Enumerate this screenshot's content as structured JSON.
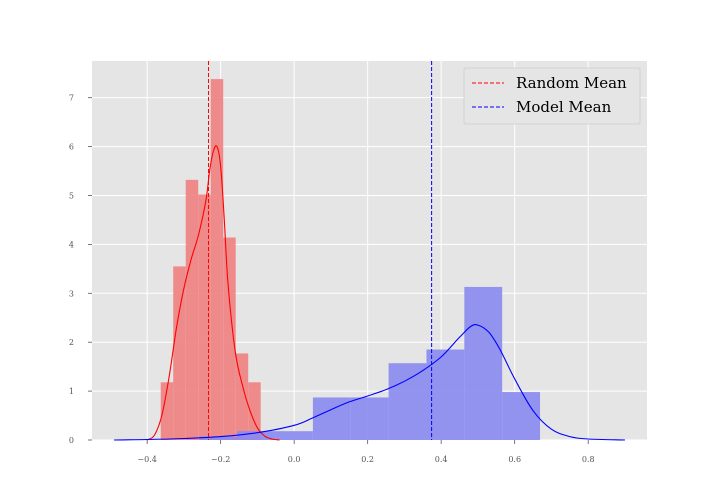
{
  "chart_data": {
    "type": "histogram",
    "title": "",
    "xlabel": "",
    "ylabel": "",
    "xlim": [
      -0.55,
      0.96
    ],
    "ylim": [
      0,
      7.75
    ],
    "xticks": [
      -0.4,
      -0.2,
      0.0,
      0.2,
      0.4,
      0.6,
      0.8
    ],
    "xtick_labels": [
      "−0.4",
      "−0.2",
      "0.0",
      "0.2",
      "0.4",
      "0.6",
      "0.8"
    ],
    "yticks": [
      0,
      1,
      2,
      3,
      4,
      5,
      6,
      7
    ],
    "ytick_labels": [
      "0",
      "1",
      "2",
      "3",
      "4",
      "5",
      "6",
      "7"
    ],
    "grid": true,
    "background": "#e5e5e5",
    "legend_position": "top-right",
    "series": [
      {
        "name": "random",
        "color": "#f08080",
        "bins": [
          {
            "x0": -0.363,
            "x1": -0.329,
            "height": 1.18
          },
          {
            "x0": -0.329,
            "x1": -0.295,
            "height": 3.55
          },
          {
            "x0": -0.295,
            "x1": -0.261,
            "height": 5.32
          },
          {
            "x0": -0.261,
            "x1": -0.227,
            "height": 5.02
          },
          {
            "x0": -0.227,
            "x1": -0.193,
            "height": 7.38
          },
          {
            "x0": -0.193,
            "x1": -0.159,
            "height": 4.14
          },
          {
            "x0": -0.159,
            "x1": -0.125,
            "height": 1.77
          },
          {
            "x0": -0.125,
            "x1": -0.091,
            "height": 1.18
          }
        ],
        "kde_color": "#ff0000",
        "kde": [
          [
            -0.4,
            0.0
          ],
          [
            -0.38,
            0.1
          ],
          [
            -0.36,
            0.5
          ],
          [
            -0.34,
            1.3
          ],
          [
            -0.32,
            2.3
          ],
          [
            -0.3,
            3.1
          ],
          [
            -0.28,
            3.7
          ],
          [
            -0.26,
            4.2
          ],
          [
            -0.24,
            4.9
          ],
          [
            -0.23,
            5.5
          ],
          [
            -0.22,
            5.9
          ],
          [
            -0.21,
            6.0
          ],
          [
            -0.2,
            5.6
          ],
          [
            -0.19,
            4.5
          ],
          [
            -0.18,
            3.2
          ],
          [
            -0.16,
            1.8
          ],
          [
            -0.14,
            1.1
          ],
          [
            -0.12,
            0.6
          ],
          [
            -0.1,
            0.25
          ],
          [
            -0.08,
            0.08
          ],
          [
            -0.06,
            0.02
          ],
          [
            -0.04,
            0.0
          ]
        ],
        "mean": -0.233,
        "mean_label": "Random Mean"
      },
      {
        "name": "model",
        "color": "#8888f0",
        "bins": [
          {
            "x0": -0.258,
            "x1": -0.155,
            "height": 0.07
          },
          {
            "x0": -0.155,
            "x1": -0.052,
            "height": 0.18
          },
          {
            "x0": -0.052,
            "x1": 0.051,
            "height": 0.18
          },
          {
            "x0": 0.051,
            "x1": 0.154,
            "height": 0.87
          },
          {
            "x0": 0.154,
            "x1": 0.257,
            "height": 0.87
          },
          {
            "x0": 0.257,
            "x1": 0.36,
            "height": 1.57
          },
          {
            "x0": 0.36,
            "x1": 0.463,
            "height": 1.85
          },
          {
            "x0": 0.463,
            "x1": 0.566,
            "height": 3.13
          },
          {
            "x0": 0.566,
            "x1": 0.669,
            "height": 0.98
          }
        ],
        "kde_color": "#0000ff",
        "kde": [
          [
            -0.49,
            0.0
          ],
          [
            -0.4,
            0.01
          ],
          [
            -0.3,
            0.03
          ],
          [
            -0.2,
            0.07
          ],
          [
            -0.1,
            0.15
          ],
          [
            0.0,
            0.3
          ],
          [
            0.05,
            0.45
          ],
          [
            0.1,
            0.62
          ],
          [
            0.15,
            0.78
          ],
          [
            0.2,
            0.9
          ],
          [
            0.25,
            1.03
          ],
          [
            0.3,
            1.2
          ],
          [
            0.35,
            1.42
          ],
          [
            0.4,
            1.7
          ],
          [
            0.45,
            2.1
          ],
          [
            0.48,
            2.32
          ],
          [
            0.5,
            2.35
          ],
          [
            0.53,
            2.2
          ],
          [
            0.56,
            1.85
          ],
          [
            0.6,
            1.25
          ],
          [
            0.65,
            0.6
          ],
          [
            0.7,
            0.22
          ],
          [
            0.75,
            0.07
          ],
          [
            0.8,
            0.02
          ],
          [
            0.9,
            0.0
          ]
        ],
        "mean": 0.374,
        "mean_label": "Model Mean"
      }
    ],
    "legend": [
      {
        "label": "Random Mean",
        "color": "#ff0000",
        "style": "dashed"
      },
      {
        "label": "Model Mean",
        "color": "#0000ff",
        "style": "dashed"
      }
    ]
  }
}
